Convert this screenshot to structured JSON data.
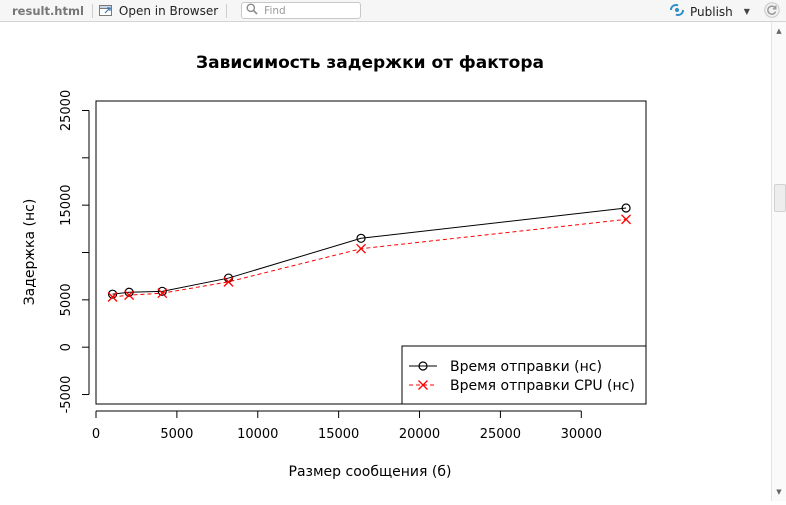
{
  "toolbar": {
    "file_name": "result.html",
    "open_browser_label": "Open in Browser",
    "find_placeholder": "Find",
    "publish_label": "Publish"
  },
  "colors": {
    "series1": "#000000",
    "series2": "#ff0000",
    "publish_icon": "#2c8fc9"
  },
  "icons": {
    "open_browser": "open-in-browser-icon",
    "find": "search-icon",
    "publish": "publish-icon",
    "refresh": "refresh-icon"
  },
  "chart_data": {
    "type": "line",
    "title": "Зависимость задержки от фактора",
    "xlabel": "Размер сообщения (б)",
    "ylabel": "Задержка (нс)",
    "xlim": [
      0,
      34000
    ],
    "ylim": [
      -6000,
      26000
    ],
    "xticks": [
      0,
      5000,
      10000,
      15000,
      20000,
      25000,
      30000
    ],
    "xtick_labels": [
      "0",
      "5000",
      "10000",
      "15000",
      "20000",
      "25000",
      "30000"
    ],
    "yticks": [
      -5000,
      0,
      5000,
      15000,
      25000
    ],
    "ytick_labels": [
      "-5000",
      "0",
      "5000",
      "15000",
      "25000"
    ],
    "y_minor_ticks": [
      10000,
      20000
    ],
    "grid": false,
    "legend_position": "bottom-right",
    "series": [
      {
        "name": "Время отправки (нс)",
        "marker": "circle",
        "line": "solid",
        "color": "#000000",
        "x": [
          1024,
          2048,
          4096,
          8192,
          16384,
          32768
        ],
        "y": [
          5600,
          5800,
          5900,
          7300,
          11500,
          14700
        ]
      },
      {
        "name": "Время отправки CPU (нс)",
        "marker": "x",
        "line": "dashed",
        "color": "#ff0000",
        "x": [
          1024,
          2048,
          4096,
          8192,
          16384,
          32768
        ],
        "y": [
          5300,
          5500,
          5700,
          6900,
          10400,
          13500
        ]
      }
    ]
  }
}
